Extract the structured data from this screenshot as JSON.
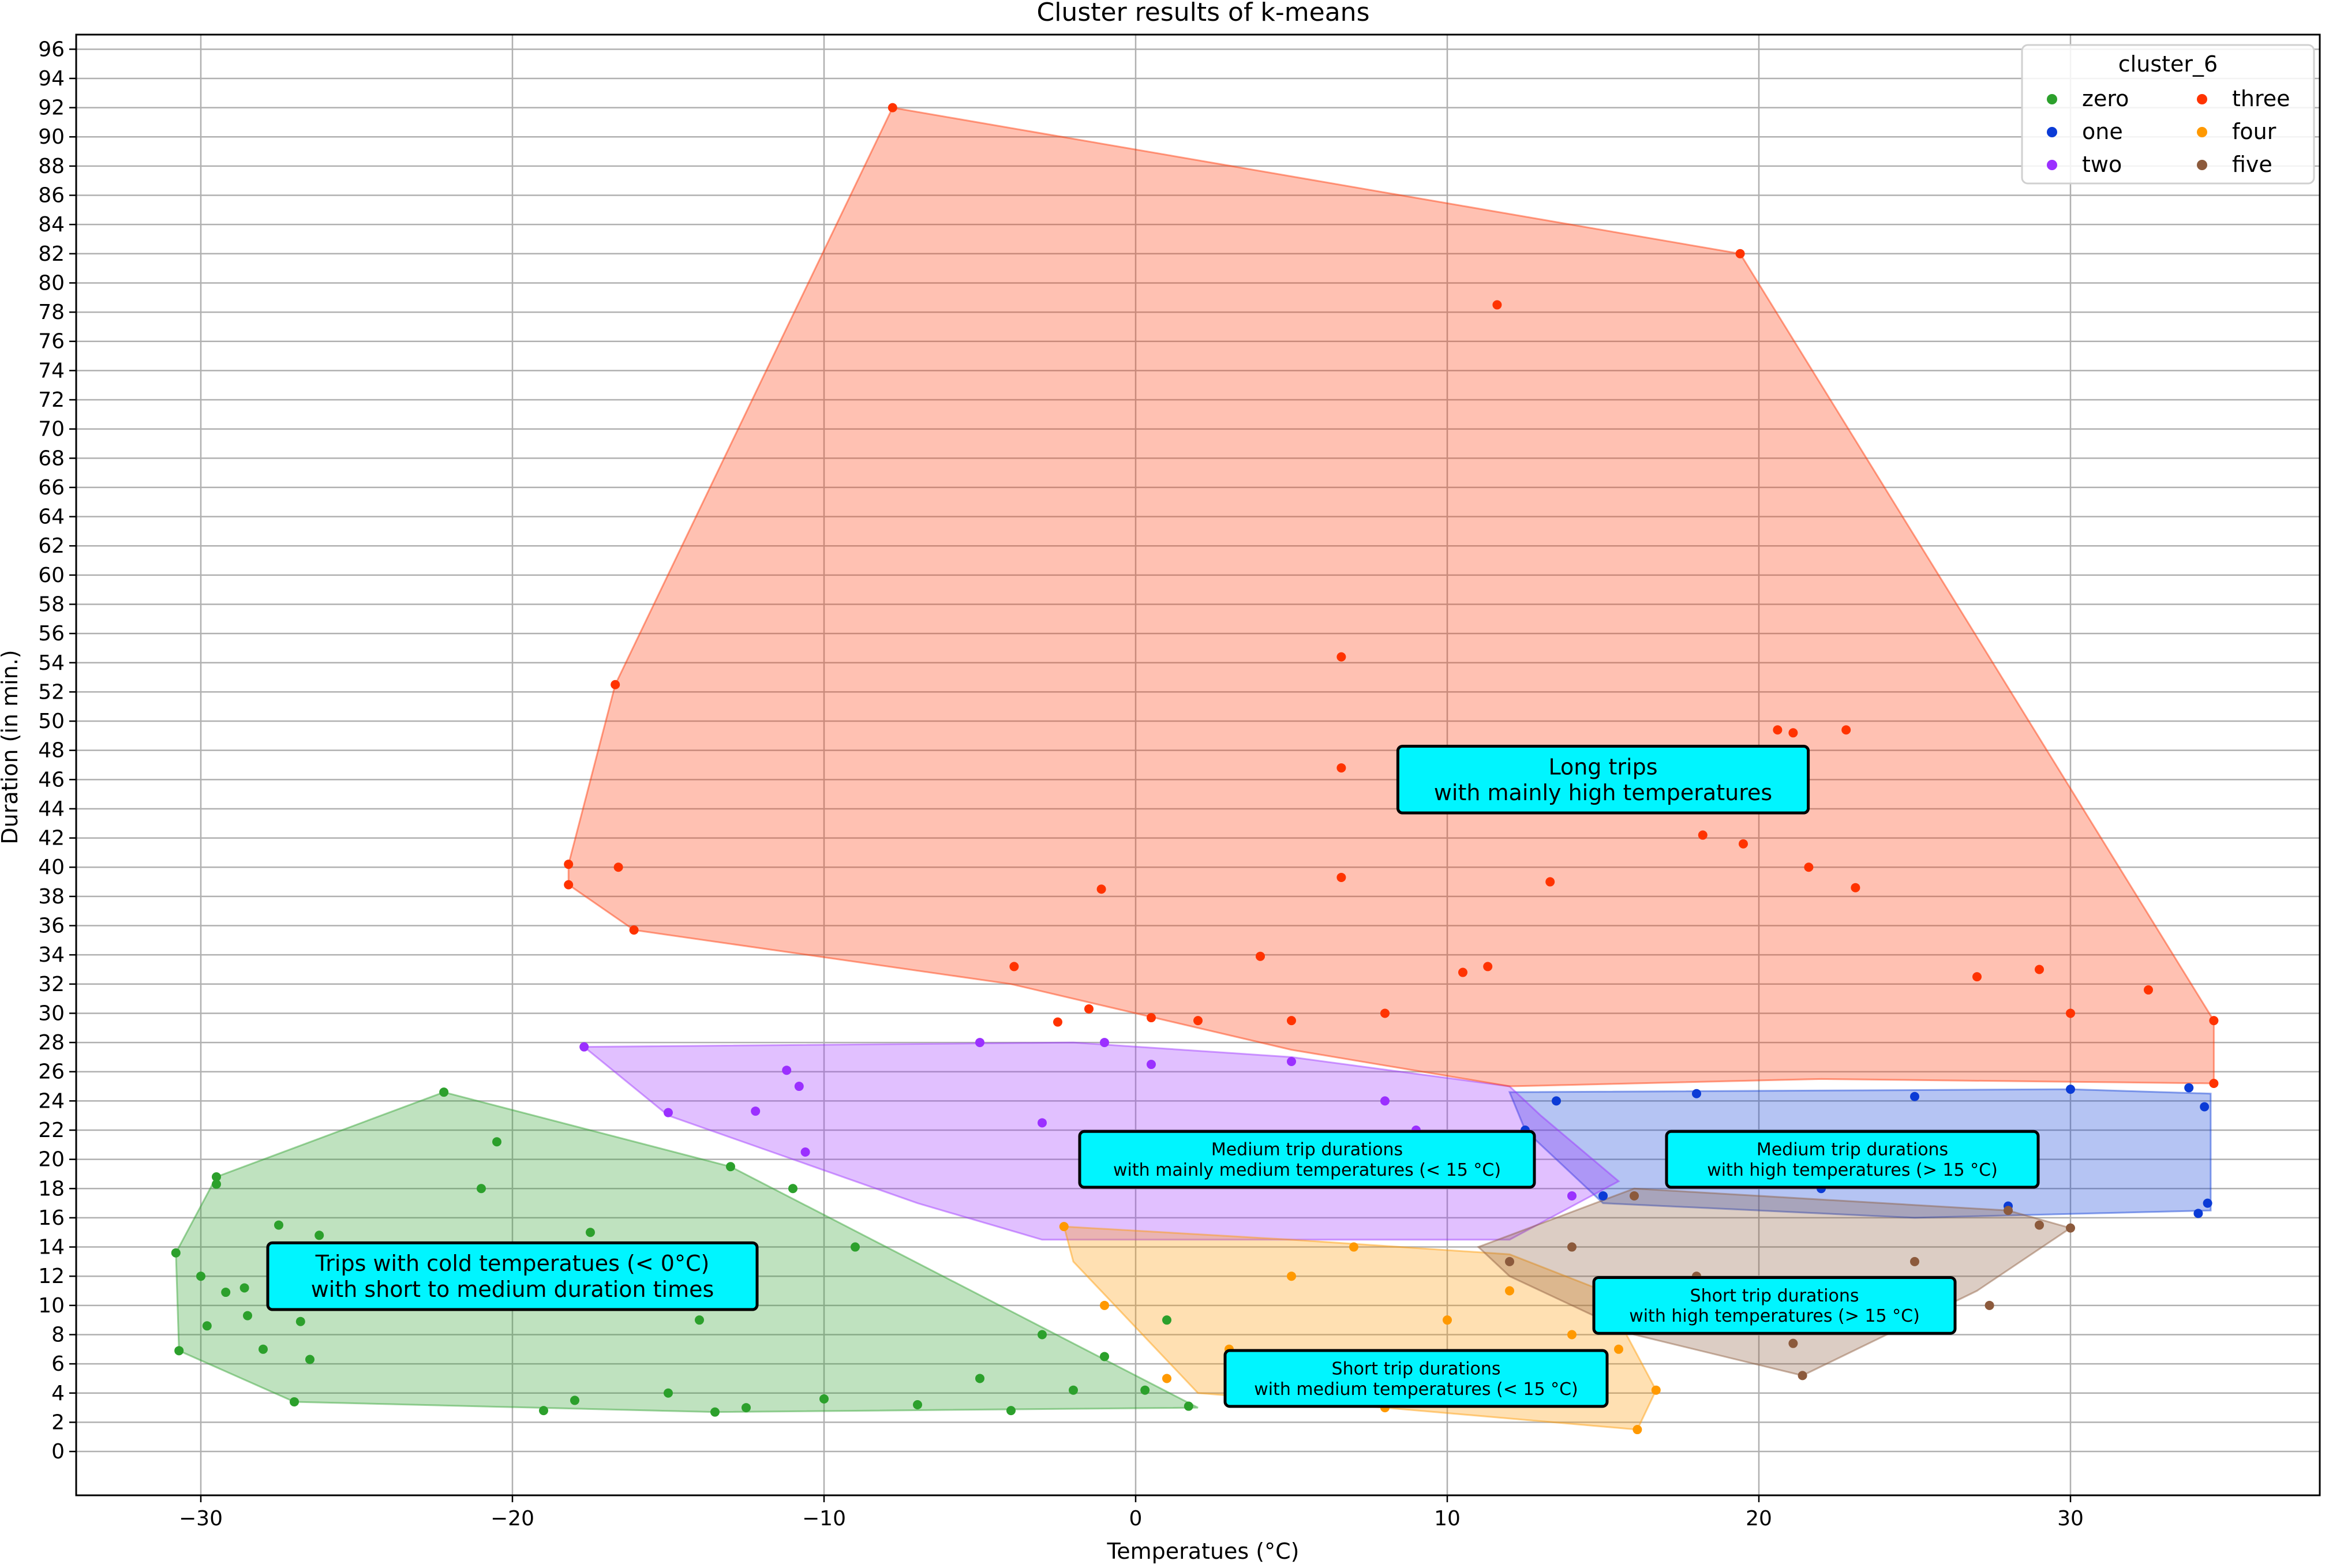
{
  "chart_data": {
    "type": "scatter",
    "title": "Cluster results of k-means",
    "xlabel": "Temperatues (°C)",
    "ylabel": "Duration (in min.)",
    "xlim": [
      -34,
      38
    ],
    "ylim": [
      -3,
      97
    ],
    "x_ticks": [
      -30,
      -20,
      -10,
      0,
      10,
      20,
      30
    ],
    "x_tick_labels": [
      "−30",
      "−20",
      "−10",
      "0",
      "10",
      "20",
      "30"
    ],
    "y_ticks": [
      0,
      2,
      4,
      6,
      8,
      10,
      12,
      14,
      16,
      18,
      20,
      22,
      24,
      26,
      28,
      30,
      32,
      34,
      36,
      38,
      40,
      42,
      44,
      46,
      48,
      50,
      52,
      54,
      56,
      58,
      60,
      62,
      64,
      66,
      68,
      70,
      72,
      74,
      76,
      78,
      80,
      82,
      84,
      86,
      88,
      90,
      92,
      94,
      96
    ],
    "y_tick_labels": [
      "0",
      "2",
      "4",
      "6",
      "8",
      "10",
      "12",
      "14",
      "16",
      "18",
      "20",
      "22",
      "24",
      "26",
      "28",
      "30",
      "32",
      "34",
      "36",
      "38",
      "40",
      "42",
      "44",
      "46",
      "48",
      "50",
      "52",
      "54",
      "56",
      "58",
      "60",
      "62",
      "64",
      "66",
      "68",
      "70",
      "72",
      "74",
      "76",
      "78",
      "80",
      "82",
      "84",
      "86",
      "88",
      "90",
      "92",
      "94",
      "96"
    ],
    "grid": true,
    "legend": {
      "title": "cluster_6",
      "placement": "top-right",
      "columns": 2,
      "entries": [
        "zero",
        "one",
        "two",
        "three",
        "four",
        "five"
      ]
    },
    "colors": {
      "zero": "#2ca02c",
      "one": "#0b3bd6",
      "two": "#9b30ff",
      "three": "#ff3300",
      "four": "#ff9900",
      "five": "#8c5a3c"
    },
    "series": [
      {
        "name": "zero",
        "hull": [
          [
            -30.8,
            13.6
          ],
          [
            -29.5,
            18.8
          ],
          [
            -22.2,
            24.6
          ],
          [
            -13,
            19.5
          ],
          [
            2.0,
            3.0
          ],
          [
            -13.5,
            2.7
          ],
          [
            -27.0,
            3.4
          ],
          [
            -30.7,
            6.9
          ]
        ],
        "points": [
          [
            -30.8,
            13.6
          ],
          [
            -30.7,
            6.9
          ],
          [
            -29.5,
            18.8
          ],
          [
            -29.5,
            18.3
          ],
          [
            -30.0,
            12.0
          ],
          [
            -29.8,
            8.6
          ],
          [
            -29.2,
            10.9
          ],
          [
            -28.6,
            11.2
          ],
          [
            -28.5,
            9.3
          ],
          [
            -28.0,
            7.0
          ],
          [
            -27.5,
            15.5
          ],
          [
            -27.0,
            3.4
          ],
          [
            -26.8,
            8.9
          ],
          [
            -26.5,
            6.3
          ],
          [
            -26.2,
            14.8
          ],
          [
            -22.2,
            24.6
          ],
          [
            -21.0,
            18.0
          ],
          [
            -20.5,
            21.2
          ],
          [
            -19.0,
            2.8
          ],
          [
            -18.0,
            3.5
          ],
          [
            -17.5,
            15.0
          ],
          [
            -16.5,
            12.0
          ],
          [
            -15.0,
            4.0
          ],
          [
            -14.0,
            9.0
          ],
          [
            -13.5,
            2.7
          ],
          [
            -13.0,
            19.5
          ],
          [
            -12.5,
            3.0
          ],
          [
            -11.0,
            18.0
          ],
          [
            -10.0,
            3.6
          ],
          [
            -9.0,
            14.0
          ],
          [
            -7.0,
            3.2
          ],
          [
            -5.0,
            5.0
          ],
          [
            -4.0,
            2.8
          ],
          [
            -3.0,
            8.0
          ],
          [
            -2.0,
            4.2
          ],
          [
            -1.0,
            6.5
          ],
          [
            0.3,
            4.2
          ],
          [
            1.0,
            9.0
          ],
          [
            1.7,
            3.1
          ]
        ]
      },
      {
        "name": "one",
        "hull": [
          [
            12.0,
            24.6
          ],
          [
            30.0,
            24.8
          ],
          [
            34.5,
            24.5
          ],
          [
            34.5,
            16.5
          ],
          [
            25.0,
            16.0
          ],
          [
            15.0,
            17.0
          ],
          [
            12.5,
            22.0
          ]
        ],
        "points": [
          [
            12.5,
            22.0
          ],
          [
            13.5,
            24.0
          ],
          [
            15.0,
            17.5
          ],
          [
            18.0,
            24.5
          ],
          [
            20.0,
            20.0
          ],
          [
            22.0,
            18.0
          ],
          [
            25.0,
            24.3
          ],
          [
            28.0,
            16.8
          ],
          [
            30.0,
            24.8
          ],
          [
            33.8,
            24.9
          ],
          [
            34.3,
            23.6
          ],
          [
            34.1,
            16.3
          ],
          [
            34.4,
            17.0
          ]
        ]
      },
      {
        "name": "two",
        "hull": [
          [
            -17.7,
            27.7
          ],
          [
            -2.0,
            28.0
          ],
          [
            5.0,
            27.0
          ],
          [
            12.0,
            25.0
          ],
          [
            13.0,
            23.0
          ],
          [
            15.5,
            18.5
          ],
          [
            12.0,
            14.5
          ],
          [
            -3.0,
            14.5
          ],
          [
            -7.0,
            17.0
          ],
          [
            -15.0,
            23.0
          ]
        ],
        "points": [
          [
            -17.7,
            27.7
          ],
          [
            -15.0,
            23.2
          ],
          [
            -12.2,
            23.3
          ],
          [
            -11.2,
            26.1
          ],
          [
            -10.8,
            25.0
          ],
          [
            -10.6,
            20.5
          ],
          [
            -5.0,
            28.0
          ],
          [
            -3.0,
            22.5
          ],
          [
            -1.0,
            28.0
          ],
          [
            0.5,
            26.5
          ],
          [
            5.0,
            26.7
          ],
          [
            8.0,
            24.0
          ],
          [
            9.0,
            22.0
          ],
          [
            11.0,
            19.0
          ],
          [
            14.0,
            17.5
          ]
        ]
      },
      {
        "name": "three",
        "hull": [
          [
            -7.8,
            92.0
          ],
          [
            19.4,
            82.0
          ],
          [
            34.6,
            29.5
          ],
          [
            34.6,
            25.2
          ],
          [
            22.0,
            25.5
          ],
          [
            12.0,
            25.0
          ],
          [
            5.0,
            27.5
          ],
          [
            -4.0,
            32.0
          ],
          [
            -16.1,
            35.7
          ],
          [
            -18.2,
            38.8
          ],
          [
            -18.2,
            40.2
          ],
          [
            -16.7,
            52.5
          ]
        ],
        "points": [
          [
            -7.8,
            92.0
          ],
          [
            19.4,
            82.0
          ],
          [
            11.6,
            78.5
          ],
          [
            -16.7,
            52.5
          ],
          [
            6.6,
            54.4
          ],
          [
            6.6,
            46.8
          ],
          [
            22.8,
            49.4
          ],
          [
            20.6,
            49.4
          ],
          [
            21.1,
            49.2
          ],
          [
            -18.2,
            40.2
          ],
          [
            -16.6,
            40.0
          ],
          [
            -18.2,
            38.8
          ],
          [
            -16.1,
            35.7
          ],
          [
            6.6,
            39.3
          ],
          [
            -1.1,
            38.5
          ],
          [
            13.3,
            39.0
          ],
          [
            18.2,
            42.2
          ],
          [
            19.5,
            41.6
          ],
          [
            21.6,
            40.0
          ],
          [
            23.1,
            38.6
          ],
          [
            -3.9,
            33.2
          ],
          [
            4.0,
            33.9
          ],
          [
            -1.5,
            30.3
          ],
          [
            -2.5,
            29.4
          ],
          [
            0.5,
            29.7
          ],
          [
            2.0,
            29.5
          ],
          [
            5.0,
            29.5
          ],
          [
            8.0,
            30.0
          ],
          [
            10.5,
            32.8
          ],
          [
            11.3,
            33.2
          ],
          [
            34.6,
            29.5
          ],
          [
            34.6,
            25.2
          ],
          [
            32.5,
            31.6
          ],
          [
            29.0,
            33.0
          ],
          [
            30.0,
            30.0
          ],
          [
            27.0,
            32.5
          ]
        ]
      },
      {
        "name": "four",
        "hull": [
          [
            -2.3,
            15.4
          ],
          [
            5.0,
            14.5
          ],
          [
            12.0,
            13.5
          ],
          [
            15.0,
            11.0
          ],
          [
            16.7,
            4.2
          ],
          [
            16.1,
            1.5
          ],
          [
            8.0,
            3.0
          ],
          [
            2.0,
            4.0
          ],
          [
            -2.0,
            13.0
          ]
        ],
        "points": [
          [
            -2.3,
            15.4
          ],
          [
            -1.0,
            10.0
          ],
          [
            1.0,
            5.0
          ],
          [
            3.0,
            7.0
          ],
          [
            5.0,
            12.0
          ],
          [
            7.0,
            14.0
          ],
          [
            8.0,
            3.0
          ],
          [
            10.0,
            9.0
          ],
          [
            12.0,
            11.0
          ],
          [
            14.0,
            8.0
          ],
          [
            15.5,
            7.0
          ],
          [
            16.7,
            4.2
          ],
          [
            16.1,
            1.5
          ]
        ]
      },
      {
        "name": "five",
        "hull": [
          [
            11.0,
            14.0
          ],
          [
            16.0,
            18.0
          ],
          [
            28.0,
            16.5
          ],
          [
            30.0,
            15.3
          ],
          [
            27.0,
            11.0
          ],
          [
            21.4,
            5.2
          ],
          [
            16.0,
            8.0
          ],
          [
            12.0,
            12.0
          ]
        ],
        "points": [
          [
            12.0,
            13.0
          ],
          [
            14.0,
            14.0
          ],
          [
            16.0,
            17.5
          ],
          [
            18.0,
            12.0
          ],
          [
            20.0,
            9.0
          ],
          [
            21.1,
            7.4
          ],
          [
            21.4,
            5.2
          ],
          [
            25.0,
            13.0
          ],
          [
            27.4,
            10.0
          ],
          [
            28.0,
            16.5
          ],
          [
            29.0,
            15.5
          ],
          [
            30.0,
            15.3
          ]
        ]
      }
    ],
    "annotations": [
      {
        "text": "Long trips\nwith mainly high temperatures",
        "x": 15,
        "y": 46,
        "size": "large"
      },
      {
        "text": "Medium trip durations\nwith mainly medium temperatures (< 15 °C)",
        "x": 5.5,
        "y": 20.0,
        "size": "small"
      },
      {
        "text": "Medium trip durations\nwith high  temperatures (> 15 °C)",
        "x": 23,
        "y": 20.0,
        "size": "small"
      },
      {
        "text": "Trips with cold temperatues (< 0°C)\nwith short to medium duration times",
        "x": -20,
        "y": 12.0,
        "size": "large"
      },
      {
        "text": "Short trip durations\nwith high temperatures (> 15 °C)",
        "x": 20.5,
        "y": 10.0,
        "size": "small"
      },
      {
        "text": "Short trip durations\nwith medium temperatures (< 15 °C)",
        "x": 9.0,
        "y": 5.0,
        "size": "small"
      }
    ]
  }
}
